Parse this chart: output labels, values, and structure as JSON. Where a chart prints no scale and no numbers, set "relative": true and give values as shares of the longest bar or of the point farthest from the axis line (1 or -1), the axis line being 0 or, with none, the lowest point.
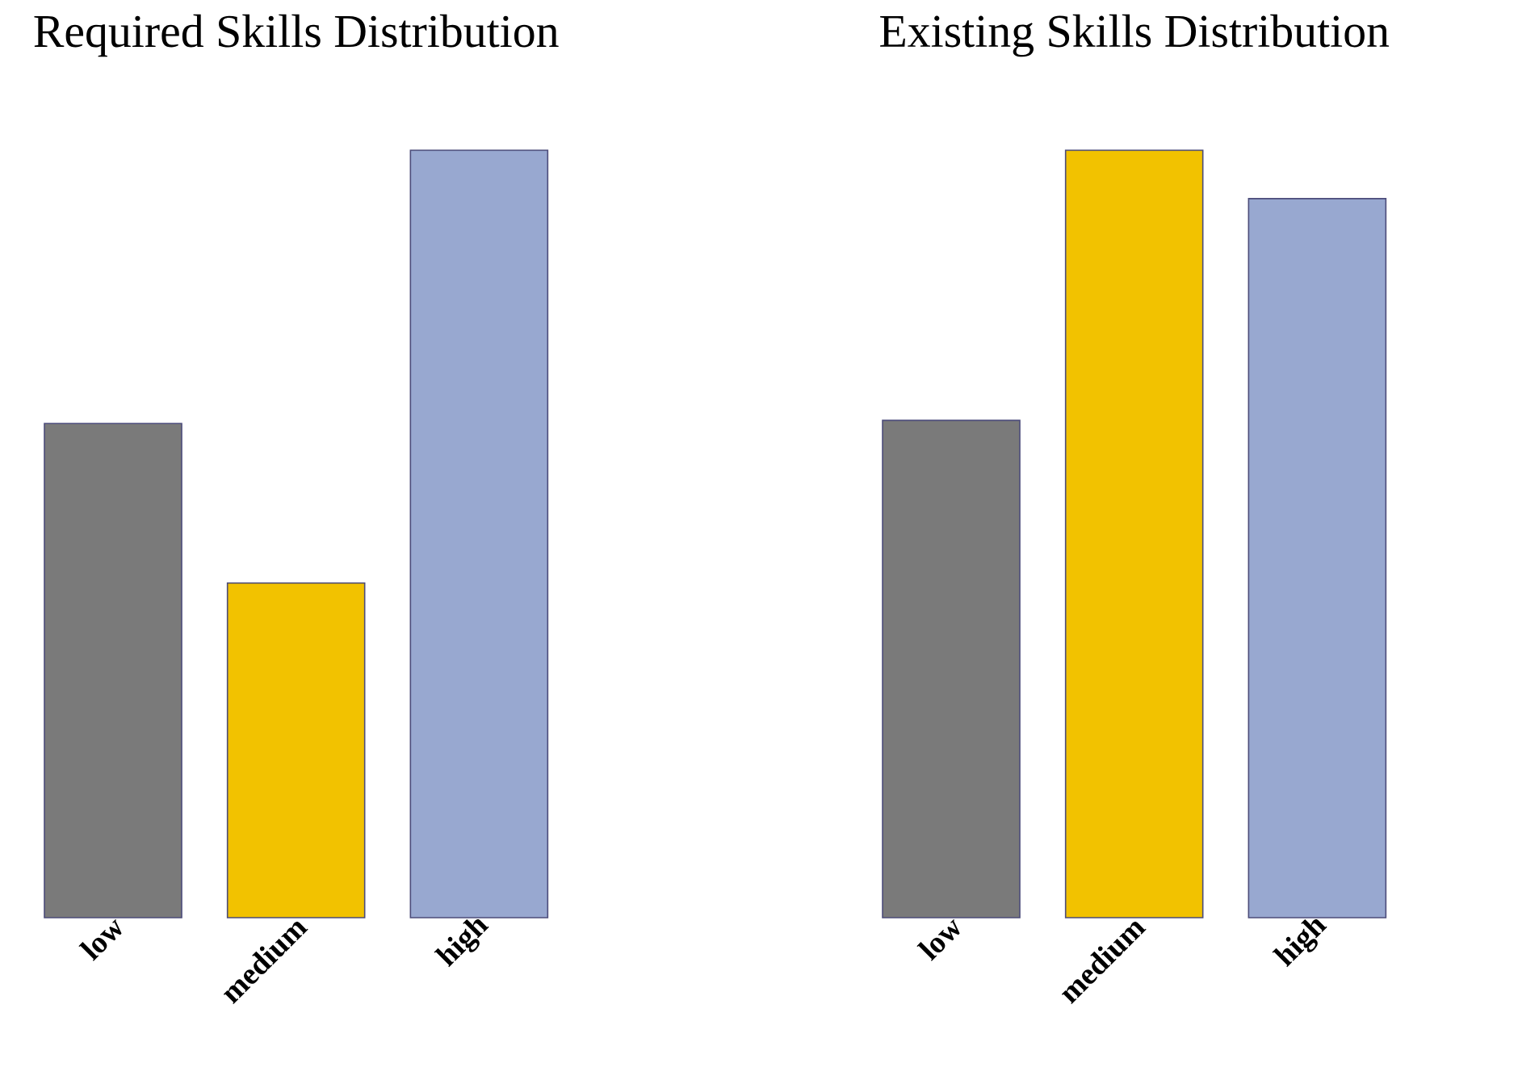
{
  "chart_data": [
    {
      "type": "bar",
      "title": "Required Skills Distribution",
      "categories": [
        "low",
        "medium",
        "high"
      ],
      "values": [
        0.644,
        0.436,
        1
      ],
      "colors": [
        "#7a7a7a",
        "#f2c200",
        "#98a8d0"
      ],
      "relative": true
    },
    {
      "type": "bar",
      "title": "Existing Skills Distribution",
      "categories": [
        "low",
        "medium",
        "high"
      ],
      "values": [
        0.648,
        1,
        0.937
      ],
      "colors": [
        "#7a7a7a",
        "#f2c200",
        "#98a8d0"
      ],
      "relative": true
    }
  ]
}
